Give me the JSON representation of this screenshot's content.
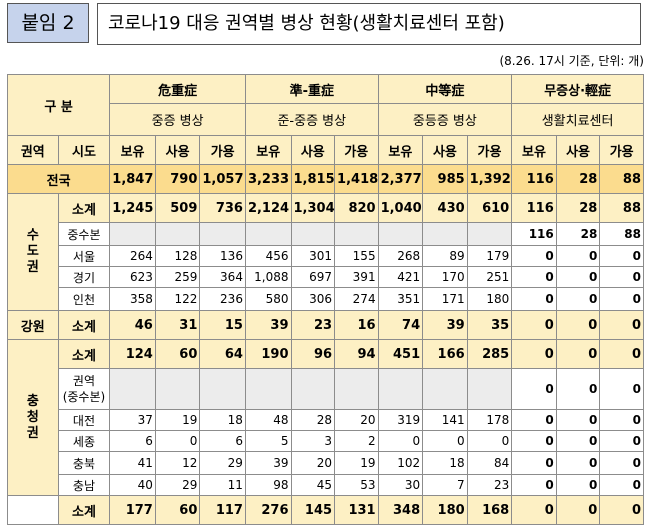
{
  "header": {
    "tag": "붙임 2",
    "title": "코로나19 대응 권역별 병상 현황(생활치료센터 포함)",
    "basis": "(8.26. 17시 기준, 단위: 개)"
  },
  "table": {
    "corner_label": "구 분",
    "groups": [
      {
        "name": "危重症",
        "sub": "중증 병상"
      },
      {
        "name": "準-重症",
        "sub": "준-중증 병상"
      },
      {
        "name": "中等症",
        "sub": "중등증 병상"
      },
      {
        "name": "무증상·輕症",
        "sub": "생활치료센터"
      }
    ],
    "col_region": "권역",
    "col_city": "시도",
    "metrics": [
      "보유",
      "사용",
      "가용"
    ],
    "national": {
      "label": "전국",
      "values": [
        "1,847",
        "790",
        "1,057",
        "3,233",
        "1,815",
        "1,418",
        "2,377",
        "985",
        "1,392",
        "116",
        "28",
        "88"
      ]
    },
    "capital": {
      "region": "수도권",
      "rows": [
        {
          "city": "소계",
          "values": [
            "1,245",
            "509",
            "736",
            "2,124",
            "1,304",
            "820",
            "1,040",
            "430",
            "610",
            "116",
            "28",
            "88"
          ]
        },
        {
          "city": "중수본",
          "values": [
            "",
            "",
            "",
            "",
            "",
            "",
            "",
            "",
            "",
            "116",
            "28",
            "88"
          ]
        },
        {
          "city": "서울",
          "values": [
            "264",
            "128",
            "136",
            "456",
            "301",
            "155",
            "268",
            "89",
            "179",
            "0",
            "0",
            "0"
          ]
        },
        {
          "city": "경기",
          "values": [
            "623",
            "259",
            "364",
            "1,088",
            "697",
            "391",
            "421",
            "170",
            "251",
            "0",
            "0",
            "0"
          ]
        },
        {
          "city": "인천",
          "values": [
            "358",
            "122",
            "236",
            "580",
            "306",
            "274",
            "351",
            "171",
            "180",
            "0",
            "0",
            "0"
          ]
        }
      ]
    },
    "gangwon": {
      "region": "강원",
      "rows": [
        {
          "city": "소계",
          "values": [
            "46",
            "31",
            "15",
            "39",
            "23",
            "16",
            "74",
            "39",
            "35",
            "0",
            "0",
            "0"
          ]
        }
      ]
    },
    "chungcheong": {
      "region": "충청권",
      "rows": [
        {
          "city": "소계",
          "values": [
            "124",
            "60",
            "64",
            "190",
            "96",
            "94",
            "451",
            "166",
            "285",
            "0",
            "0",
            "0"
          ]
        },
        {
          "city": "권역",
          "city2": "(중수본)",
          "values": [
            "",
            "",
            "",
            "",
            "",
            "",
            "",
            "",
            "",
            "0",
            "0",
            "0"
          ]
        },
        {
          "city": "대전",
          "values": [
            "37",
            "19",
            "18",
            "48",
            "28",
            "20",
            "319",
            "141",
            "178",
            "0",
            "0",
            "0"
          ]
        },
        {
          "city": "세종",
          "values": [
            "6",
            "0",
            "6",
            "5",
            "3",
            "2",
            "0",
            "0",
            "0",
            "0",
            "0",
            "0"
          ]
        },
        {
          "city": "충북",
          "values": [
            "41",
            "12",
            "29",
            "39",
            "20",
            "19",
            "102",
            "18",
            "84",
            "0",
            "0",
            "0"
          ]
        },
        {
          "city": "충남",
          "values": [
            "40",
            "29",
            "11",
            "98",
            "45",
            "53",
            "30",
            "7",
            "23",
            "0",
            "0",
            "0"
          ]
        }
      ]
    },
    "next": {
      "city": "소계",
      "values": [
        "177",
        "60",
        "117",
        "276",
        "145",
        "131",
        "348",
        "180",
        "168",
        "0",
        "0",
        "0"
      ]
    }
  }
}
